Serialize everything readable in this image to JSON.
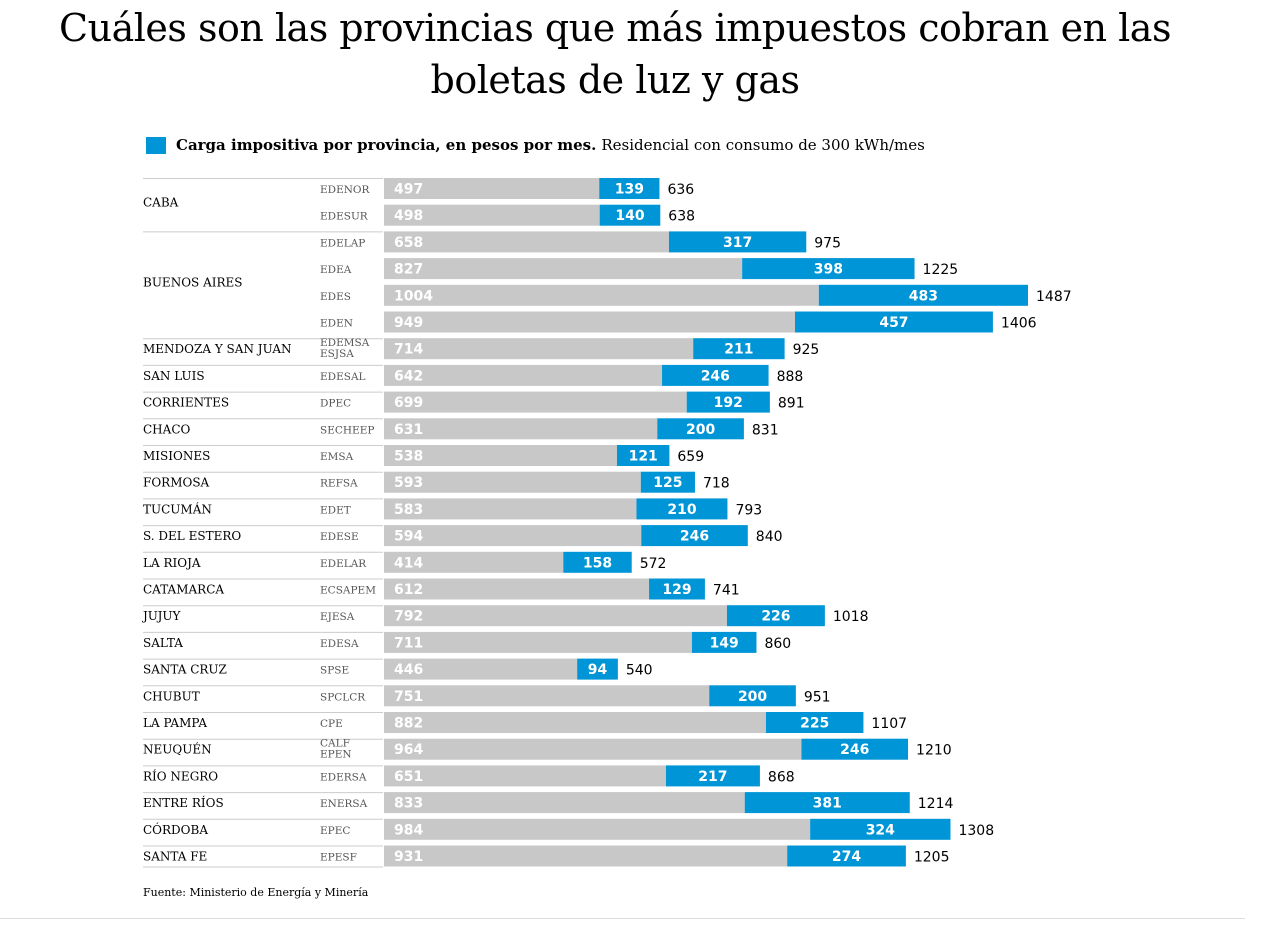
{
  "title": "Cuáles son las provincias que más impuestos cobran en las boletas de luz y gas",
  "legend": {
    "bold": "Carga impositiva por provincia, en pesos por mes.",
    "normal": "Residencial con consumo de 300 kWh/mes"
  },
  "source": "Fuente: Ministerio de Energía y Minería",
  "colors": {
    "base": "#c8c8c8",
    "tax": "#0095d6",
    "tax_label": "#ffffff",
    "base_label": "#ffffff",
    "grid": "#cccccc"
  },
  "chart_data": {
    "type": "bar",
    "orientation": "horizontal",
    "stacked": true,
    "series": [
      {
        "values": [
          497,
          498,
          658,
          827,
          1004,
          949,
          714,
          642,
          699,
          631,
          538,
          593,
          583,
          594,
          414,
          612,
          792,
          711,
          446,
          751,
          882,
          964,
          651,
          833,
          984,
          931
        ]
      },
      {
        "name": "Carga impositiva por provincia, en pesos por mes.",
        "values": [
          139,
          140,
          317,
          398,
          483,
          457,
          211,
          246,
          192,
          200,
          121,
          125,
          210,
          246,
          158,
          129,
          226,
          149,
          94,
          200,
          225,
          246,
          217,
          381,
          324,
          274
        ]
      }
    ],
    "totals": [
      636,
      638,
      975,
      1225,
      1487,
      1406,
      925,
      888,
      891,
      831,
      659,
      718,
      793,
      840,
      572,
      741,
      1018,
      860,
      540,
      951,
      1107,
      1210,
      868,
      1214,
      1308,
      1205
    ],
    "companies": [
      [
        "EDENOR"
      ],
      [
        "EDESUR"
      ],
      [
        "EDELAP"
      ],
      [
        "EDEA"
      ],
      [
        "EDES"
      ],
      [
        "EDEN"
      ],
      [
        "EDEMSA",
        "ESJSA"
      ],
      [
        "EDESAL"
      ],
      [
        "DPEC"
      ],
      [
        "SECHEEP"
      ],
      [
        "EMSA"
      ],
      [
        "REFSA"
      ],
      [
        "EDET"
      ],
      [
        "EDESE"
      ],
      [
        "EDELAR"
      ],
      [
        "ECSAPEM"
      ],
      [
        "EJESA"
      ],
      [
        "EDESA"
      ],
      [
        "SPSE"
      ],
      [
        "SPCLCR"
      ],
      [
        "CPE"
      ],
      [
        "CALF",
        "EPEN"
      ],
      [
        "EDERSA"
      ],
      [
        "ENERSA"
      ],
      [
        "EPEC"
      ],
      [
        "EPESF"
      ]
    ],
    "provinces": [
      {
        "name": "CABA",
        "rows": [
          0,
          1
        ]
      },
      {
        "name": "BUENOS AIRES",
        "rows": [
          2,
          3,
          4,
          5
        ]
      },
      {
        "name": "MENDOZA Y SAN JUAN",
        "rows": [
          6
        ]
      },
      {
        "name": "SAN LUIS",
        "rows": [
          7
        ]
      },
      {
        "name": "CORRIENTES",
        "rows": [
          8
        ]
      },
      {
        "name": "CHACO",
        "rows": [
          9
        ]
      },
      {
        "name": "MISIONES",
        "rows": [
          10
        ]
      },
      {
        "name": "FORMOSA",
        "rows": [
          11
        ]
      },
      {
        "name": "TUCUMÁN",
        "rows": [
          12
        ]
      },
      {
        "name": "S. DEL ESTERO",
        "rows": [
          13
        ]
      },
      {
        "name": "LA RIOJA",
        "rows": [
          14
        ]
      },
      {
        "name": "CATAMARCA",
        "rows": [
          15
        ]
      },
      {
        "name": "JUJUY",
        "rows": [
          16
        ]
      },
      {
        "name": "SALTA",
        "rows": [
          17
        ]
      },
      {
        "name": "SANTA CRUZ",
        "rows": [
          18
        ]
      },
      {
        "name": "CHUBUT",
        "rows": [
          19
        ]
      },
      {
        "name": "LA PAMPA",
        "rows": [
          20
        ]
      },
      {
        "name": "NEUQUÉN",
        "rows": [
          21
        ]
      },
      {
        "name": "RÍO NEGRO",
        "rows": [
          22
        ]
      },
      {
        "name": "ENTRE RÍOS",
        "rows": [
          23
        ]
      },
      {
        "name": "CÓRDOBA",
        "rows": [
          24
        ]
      },
      {
        "name": "SANTA FE",
        "rows": [
          25
        ]
      }
    ],
    "xlim": [
      0,
      1487
    ],
    "grid": false,
    "legend_position": "top-left"
  }
}
